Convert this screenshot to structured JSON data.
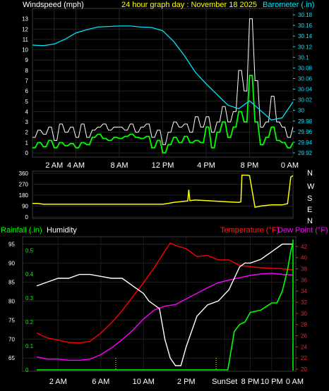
{
  "chart_data": [
    {
      "type": "line",
      "panel": "wind-barometer",
      "title": "24 hour graph day : November 18 2025",
      "left_label": "Windspeed (mph)",
      "right_label": "Barometer (.in)",
      "x_ticks": [
        "2 AM",
        "4 AM",
        "8 AM",
        "12 PM",
        "4 PM",
        "8 PM",
        "0 AM"
      ],
      "y_ticks": [
        "0",
        "1",
        "2",
        "3",
        "4",
        "5",
        "6",
        "7",
        "8",
        "9",
        "10",
        "11",
        "12",
        "13"
      ],
      "y2_ticks": [
        "29.92",
        "29.94",
        "29.96",
        "29.98",
        "30",
        "30.02",
        "30.04",
        "30.06",
        "30.08",
        "30.1",
        "30.12",
        "30.14",
        "30.16",
        "30.18"
      ],
      "ylim": [
        0,
        14
      ],
      "y2lim": [
        29.92,
        30.192
      ],
      "xlim": [
        0,
        24
      ],
      "series": [
        {
          "color": "#ffffff",
          "kind": "gust",
          "x": [
            0,
            0.5,
            1,
            1.5,
            2,
            2.5,
            3,
            3.5,
            4,
            4.5,
            5,
            5.5,
            6,
            6.5,
            7,
            7.5,
            8,
            8.5,
            9,
            9.5,
            10,
            10.5,
            11,
            11.5,
            12,
            12.5,
            13,
            13.5,
            14,
            14.5,
            15,
            15.5,
            16,
            16.5,
            17,
            17.5,
            18,
            18.5,
            19,
            19.5,
            20,
            20.5,
            21,
            21.5,
            22,
            22.5,
            23,
            23.5,
            24
          ],
          "values": [
            1.5,
            2.2,
            1.8,
            2.5,
            1.2,
            2.8,
            2,
            2.5,
            1.5,
            2.8,
            1.5,
            2.2,
            2.5,
            2.8,
            2.2,
            2.5,
            2.5,
            2.2,
            2.8,
            2,
            2.5,
            2.8,
            1.5,
            2.2,
            0.8,
            2,
            3,
            2.5,
            2.8,
            2,
            3.5,
            2.5,
            3.5,
            2,
            3,
            4.5,
            3,
            4,
            8,
            6,
            13,
            7,
            2.5,
            3,
            5.5,
            3,
            2.5,
            1.5,
            2.5
          ]
        },
        {
          "color": "#00ff00",
          "kind": "average",
          "x": [
            0,
            0.5,
            1,
            1.5,
            2,
            2.5,
            3,
            3.5,
            4,
            4.5,
            5,
            5.5,
            6,
            6.5,
            7,
            7.5,
            8,
            8.5,
            9,
            9.5,
            10,
            10.5,
            11,
            11.5,
            12,
            12.5,
            13,
            13.5,
            14,
            14.5,
            15,
            15.5,
            16,
            16.5,
            17,
            17.5,
            18,
            18.5,
            19,
            19.5,
            20,
            20.5,
            21,
            21.5,
            22,
            22.5,
            23,
            23.5,
            24
          ],
          "values": [
            0.5,
            1,
            0.6,
            1.2,
            0.5,
            1,
            0.7,
            0.9,
            0.5,
            1,
            0.8,
            1.5,
            1.8,
            1.4,
            1.2,
            1.5,
            1.4,
            1.6,
            1.8,
            1.5,
            1.4,
            1.6,
            0.5,
            1.2,
            0,
            0.8,
            1.5,
            1,
            1.6,
            1,
            1.2,
            1,
            2.5,
            0.5,
            2,
            3,
            1.5,
            2.5,
            4,
            3,
            7.5,
            3,
            0.8,
            1.5,
            2.5,
            1.2,
            1,
            0.5,
            1
          ]
        },
        {
          "color": "#00e5ff",
          "kind": "barometer",
          "axis": "right",
          "x": [
            0,
            1,
            2,
            3,
            4,
            5,
            6,
            7,
            8,
            9,
            10,
            11,
            12,
            13,
            14,
            15,
            16,
            17,
            18,
            19,
            20,
            21,
            22,
            23,
            24
          ],
          "values": [
            30.123,
            30.122,
            30.125,
            30.134,
            30.146,
            30.152,
            30.157,
            30.158,
            30.159,
            30.159,
            30.157,
            30.156,
            30.15,
            30.13,
            30.103,
            30.072,
            30.05,
            30.03,
            30.01,
            30.003,
            30.018,
            30.0,
            29.982,
            29.986,
            30.016
          ]
        }
      ]
    },
    {
      "type": "line",
      "panel": "wind-direction",
      "left_ticks": [
        "360",
        "270",
        "180",
        "90",
        "0"
      ],
      "right_ticks": [
        "N",
        "W",
        "S",
        "E",
        "N"
      ],
      "ylim": [
        0,
        360
      ],
      "xlim": [
        0,
        24
      ],
      "series": [
        {
          "color": "#ffff00",
          "kind": "direction",
          "x": [
            0,
            0.5,
            1,
            2,
            3,
            4,
            5,
            6,
            7,
            8,
            9,
            10,
            11,
            12,
            12.5,
            13,
            13.5,
            14,
            14.3,
            14.4,
            14.5,
            15,
            16,
            17,
            18,
            19,
            19.2,
            19.3,
            19.5,
            19.8,
            20,
            20.5,
            21,
            21.5,
            22,
            22.5,
            23,
            23.5,
            23.8,
            24
          ],
          "values": [
            112,
            112,
            105,
            105,
            105,
            105,
            105,
            105,
            105,
            105,
            105,
            105,
            105,
            105,
            112,
            120,
            125,
            130,
            132,
            225,
            135,
            140,
            135,
            130,
            125,
            120,
            125,
            345,
            345,
            345,
            340,
            80,
            90,
            95,
            100,
            100,
            100,
            110,
            330,
            340
          ]
        }
      ]
    },
    {
      "type": "line",
      "panel": "rain-humidity-temperature",
      "rain_label": "Rainfall (.in)",
      "humidity_label": "Humidity",
      "temp_label": "Temperature (°F)",
      "dew_label": "Dew Point (°F)",
      "x_ticks": [
        "2 AM",
        "6 AM",
        "10 AM",
        "2 PM",
        "SunSet",
        "8 PM",
        "10 PM",
        "0 AM"
      ],
      "humidity_ticks": [
        "65",
        "70",
        "75",
        "80",
        "85",
        "90",
        "95"
      ],
      "rain_ticks": [
        "0",
        "0.1",
        "0.2",
        "0.3",
        "0.4",
        "0.5"
      ],
      "temp_ticks": [
        "20",
        "22",
        "24",
        "26",
        "28",
        "30",
        "32",
        "34",
        "36",
        "38",
        "40",
        "42"
      ],
      "humidity_lim": [
        61.7,
        96.2
      ],
      "rain_lim": [
        0,
        0.545
      ],
      "temp_lim": [
        20,
        43.25
      ],
      "xlim": [
        0,
        24
      ],
      "series": [
        {
          "color": "#ff0000",
          "kind": "temperature",
          "axis": "temp",
          "x": [
            0,
            1,
            2,
            3,
            4,
            5,
            6,
            7,
            8,
            9,
            10,
            11,
            12,
            12.5,
            13,
            14,
            15,
            16,
            17,
            18,
            19,
            20,
            21,
            22,
            23,
            24
          ],
          "values": [
            26.5,
            25.6,
            25.2,
            24.8,
            24.7,
            25,
            26.5,
            28.3,
            30.5,
            33,
            35.5,
            38.2,
            41.2,
            42.6,
            42.2,
            41.6,
            40.2,
            40.4,
            39.6,
            39.6,
            38.6,
            38.4,
            38.2,
            38.1,
            38.0,
            37.8
          ]
        },
        {
          "color": "#ff00ff",
          "kind": "dew-point",
          "axis": "temp",
          "x": [
            0,
            1,
            2,
            3,
            4,
            5,
            6,
            7,
            8,
            9,
            10,
            11,
            12,
            13,
            14,
            15,
            16,
            17,
            18,
            19,
            20,
            21,
            22,
            23,
            24
          ],
          "values": [
            22.2,
            21.8,
            21.8,
            21.6,
            21.6,
            21.8,
            22.6,
            23.8,
            25.3,
            27,
            29,
            30.6,
            31.3,
            31.6,
            32.6,
            33.6,
            34.6,
            35.5,
            36.0,
            36.4,
            36.8,
            37.1,
            37.2,
            37.0,
            36.9
          ]
        },
        {
          "color": "#ffffff",
          "kind": "humidity",
          "axis": "humidity",
          "x": [
            0,
            1,
            2,
            3,
            4,
            5,
            6,
            7,
            8,
            9,
            10,
            10.5,
            11,
            11.5,
            12,
            12.5,
            13,
            13.5,
            14,
            15,
            16,
            17,
            18,
            19,
            19.5,
            20,
            21,
            22,
            23,
            24
          ],
          "values": [
            84,
            85,
            86,
            86,
            87,
            87,
            86.5,
            86,
            86,
            84,
            82,
            80,
            79,
            78,
            70,
            65,
            63,
            63,
            68,
            76,
            79,
            80,
            83,
            89,
            90,
            90,
            91,
            93,
            95,
            95
          ]
        },
        {
          "color": "#00ff00",
          "kind": "rainfall",
          "axis": "rain",
          "x": [
            0,
            17.3,
            17.9,
            18.5,
            19,
            19.5,
            20,
            21,
            22,
            22.5,
            23,
            23.5,
            23.8,
            24
          ],
          "values": [
            0,
            0,
            0,
            0.16,
            0.19,
            0.2,
            0.24,
            0.25,
            0.28,
            0.28,
            0.33,
            0.42,
            0.5,
            0.53
          ]
        }
      ],
      "markers": [
        {
          "kind": "dotted-line",
          "color": "#ffff00",
          "x": 7.4
        },
        {
          "kind": "dotted-line",
          "color": "#ffff00",
          "x": 16.8
        }
      ]
    }
  ]
}
